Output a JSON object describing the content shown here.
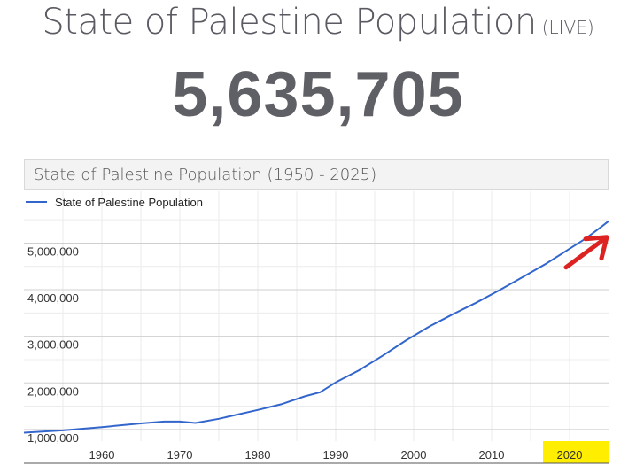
{
  "header": {
    "title": "State of Palestine Population",
    "live_tag": "(LIVE)",
    "live_count": "5,635,705"
  },
  "chart_data": {
    "type": "line",
    "title": "State of Palestine Population (1950 - 2025)",
    "legend": "top-left",
    "series": [
      {
        "name": "State of Palestine Population",
        "color": "#3366cc",
        "x": [
          1950,
          1955,
          1960,
          1965,
          1968,
          1970,
          1972,
          1975,
          1980,
          1983,
          1986,
          1988,
          1990,
          1993,
          1996,
          1999,
          2002,
          2005,
          2008,
          2011,
          2014,
          2017,
          2020,
          2022,
          2024,
          2025
        ],
        "y": [
          930000,
          980000,
          1050000,
          1130000,
          1170000,
          1170000,
          1140000,
          1230000,
          1420000,
          1540000,
          1710000,
          1800000,
          2010000,
          2270000,
          2580000,
          2910000,
          3210000,
          3470000,
          3720000,
          3990000,
          4270000,
          4560000,
          4880000,
          5090000,
          5340000,
          5470000
        ]
      }
    ],
    "x_ticks": [
      "1960",
      "1970",
      "1980",
      "1990",
      "2000",
      "2010",
      "2020"
    ],
    "y_ticks": [
      "1,000,000",
      "2,000,000",
      "3,000,000",
      "4,000,000",
      "5,000,000"
    ],
    "xlim": [
      1950,
      2025
    ],
    "ylim": [
      750000,
      5750000
    ],
    "grid": true,
    "highlight": {
      "label": "2020",
      "color": "#ffee00"
    },
    "annotation": {
      "type": "arrow",
      "color": "#dd2222",
      "points_to": 2025
    }
  }
}
